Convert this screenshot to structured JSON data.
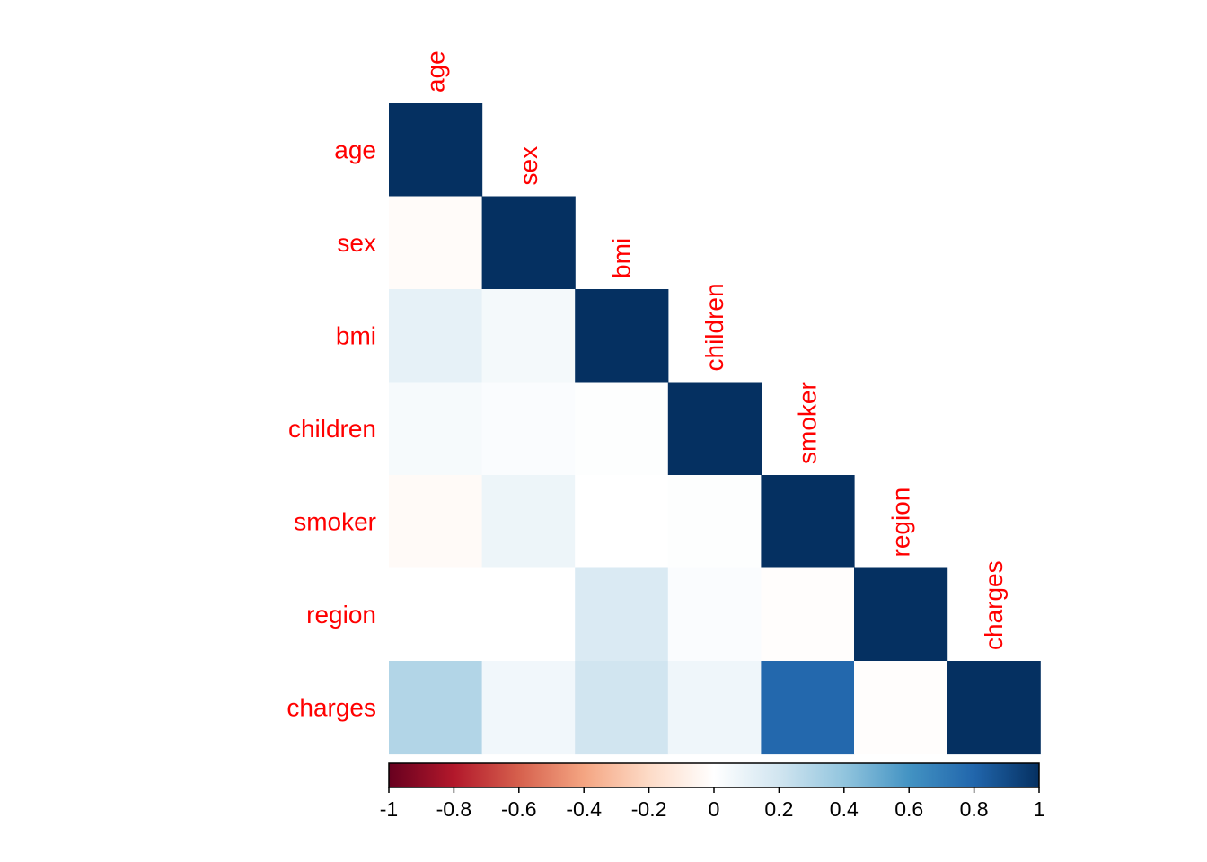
{
  "chart_data": {
    "type": "heatmap",
    "subtype": "lower-triangular correlation matrix",
    "variables": [
      "age",
      "sex",
      "bmi",
      "children",
      "smoker",
      "region",
      "charges"
    ],
    "matrix": [
      [
        1.0,
        -0.02,
        0.11,
        0.04,
        -0.03,
        0.0,
        0.3
      ],
      [
        -0.02,
        1.0,
        0.05,
        0.02,
        0.08,
        0.0,
        0.06
      ],
      [
        0.11,
        0.05,
        1.0,
        0.01,
        0.0,
        0.16,
        0.2
      ],
      [
        0.04,
        0.02,
        0.01,
        1.0,
        0.01,
        0.02,
        0.07
      ],
      [
        -0.03,
        0.08,
        0.0,
        0.01,
        1.0,
        -0.01,
        0.79
      ],
      [
        0.0,
        0.0,
        0.16,
        0.02,
        -0.01,
        1.0,
        -0.01
      ],
      [
        0.3,
        0.06,
        0.2,
        0.07,
        0.79,
        -0.01,
        1.0
      ]
    ],
    "colorbar": {
      "range": [
        -1,
        1
      ],
      "ticks": [
        "-1",
        "-0.8",
        "-0.6",
        "-0.4",
        "-0.2",
        "0",
        "0.2",
        "0.4",
        "0.6",
        "0.8",
        "1"
      ],
      "placement": "bottom"
    },
    "colors": {
      "label": "#ff0000",
      "palette": [
        "#67001F",
        "#B2182B",
        "#D6604D",
        "#F4A582",
        "#FDDBC7",
        "#FFFFFF",
        "#D1E5F0",
        "#92C5DE",
        "#4393C3",
        "#2166AC",
        "#053061"
      ]
    },
    "grid": false
  }
}
